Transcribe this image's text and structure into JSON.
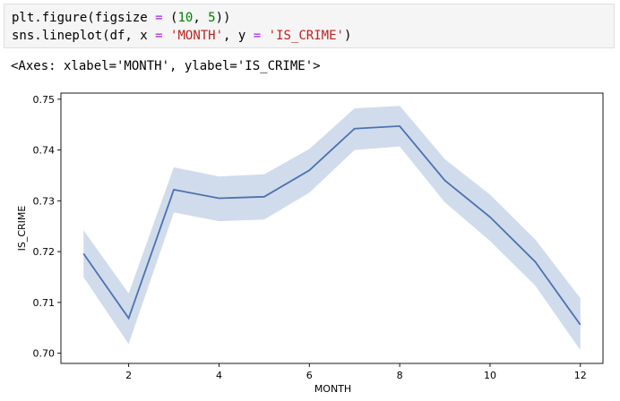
{
  "code_cell": {
    "line1": [
      {
        "t": "plt.figure(figsize ",
        "c": ""
      },
      {
        "t": "=",
        "c": "op"
      },
      {
        "t": " (",
        "c": ""
      },
      {
        "t": "10",
        "c": "num"
      },
      {
        "t": ", ",
        "c": ""
      },
      {
        "t": "5",
        "c": "num"
      },
      {
        "t": "))",
        "c": ""
      }
    ],
    "line2": [
      {
        "t": "sns.lineplot(df, x ",
        "c": ""
      },
      {
        "t": "=",
        "c": "op"
      },
      {
        "t": " ",
        "c": ""
      },
      {
        "t": "'MONTH'",
        "c": "str"
      },
      {
        "t": ", y ",
        "c": ""
      },
      {
        "t": "=",
        "c": "op"
      },
      {
        "t": " ",
        "c": ""
      },
      {
        "t": "'IS_CRIME'",
        "c": "str"
      },
      {
        "t": ")",
        "c": ""
      }
    ]
  },
  "output": {
    "text": "<Axes: xlabel='MONTH', ylabel='IS_CRIME'>"
  },
  "colors": {
    "line": "#4c72b0",
    "band": "#c4d3e6"
  },
  "chart_data": {
    "type": "line",
    "xlabel": "MONTH",
    "ylabel": "IS_CRIME",
    "xlim": [
      0.5,
      12.5
    ],
    "ylim": [
      0.698,
      0.7512
    ],
    "xticks": [
      2,
      4,
      6,
      8,
      10,
      12
    ],
    "yticks": [
      0.7,
      0.71,
      0.72,
      0.73,
      0.74,
      0.75
    ],
    "ytick_labels": [
      "0.70",
      "0.71",
      "0.72",
      "0.73",
      "0.74",
      "0.75"
    ],
    "grid": false,
    "series": [
      {
        "x": [
          1,
          2,
          3,
          4,
          5,
          6,
          7,
          8,
          9,
          10,
          11,
          12
        ],
        "y": [
          0.7196,
          0.7069,
          0.7322,
          0.7305,
          0.7308,
          0.736,
          0.7442,
          0.7447,
          0.734,
          0.7268,
          0.718,
          0.7056
        ],
        "ci_low": [
          0.715,
          0.7018,
          0.7277,
          0.726,
          0.7263,
          0.7316,
          0.74,
          0.7407,
          0.7297,
          0.7221,
          0.7133,
          0.7006
        ],
        "ci_high": [
          0.7242,
          0.7118,
          0.7366,
          0.7348,
          0.7352,
          0.7402,
          0.7482,
          0.7487,
          0.7382,
          0.7312,
          0.7224,
          0.7108
        ]
      }
    ]
  }
}
